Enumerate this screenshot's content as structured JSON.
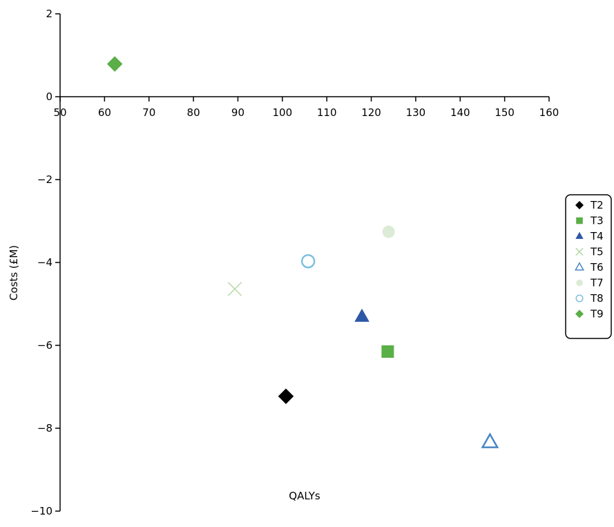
{
  "chart_data": {
    "type": "scatter",
    "xlabel": "QALYs",
    "ylabel": "Costs (£M)",
    "xlim": [
      50,
      160
    ],
    "ylim": [
      -10,
      2
    ],
    "x_ticks": [
      50,
      60,
      70,
      80,
      90,
      100,
      110,
      120,
      130,
      140,
      150,
      160
    ],
    "y_ticks": [
      2,
      0,
      -2,
      -4,
      -6,
      -8,
      -10
    ],
    "y_tick_labels": [
      "2",
      "0",
      "−2",
      "−4",
      "−6",
      "−8",
      "−10"
    ],
    "legend_position": "right",
    "series": [
      {
        "name": "T2",
        "marker": "diamond",
        "color": "#000000",
        "filled": true,
        "x": 100.8,
        "y": -7.23
      },
      {
        "name": "T3",
        "marker": "square",
        "color": "#5aaf47",
        "filled": true,
        "x": 123.7,
        "y": -6.15
      },
      {
        "name": "T4",
        "marker": "triangle",
        "color": "#2e58a6",
        "filled": true,
        "x": 117.9,
        "y": -5.31
      },
      {
        "name": "T5",
        "marker": "cross",
        "color": "#b7d9a7",
        "filled": false,
        "x": 89.3,
        "y": -4.64
      },
      {
        "name": "T6",
        "marker": "triangle",
        "color": "#4a86c5",
        "filled": false,
        "x": 146.7,
        "y": -8.34
      },
      {
        "name": "T7",
        "marker": "circle",
        "color": "#dcebd6",
        "filled": true,
        "x": 123.9,
        "y": -3.26
      },
      {
        "name": "T8",
        "marker": "circle",
        "color": "#7fbfe0",
        "filled": false,
        "x": 105.8,
        "y": -3.97
      },
      {
        "name": "T9",
        "marker": "diamond",
        "color": "#5aaf47",
        "filled": true,
        "x": 62.3,
        "y": 0.79
      }
    ]
  }
}
